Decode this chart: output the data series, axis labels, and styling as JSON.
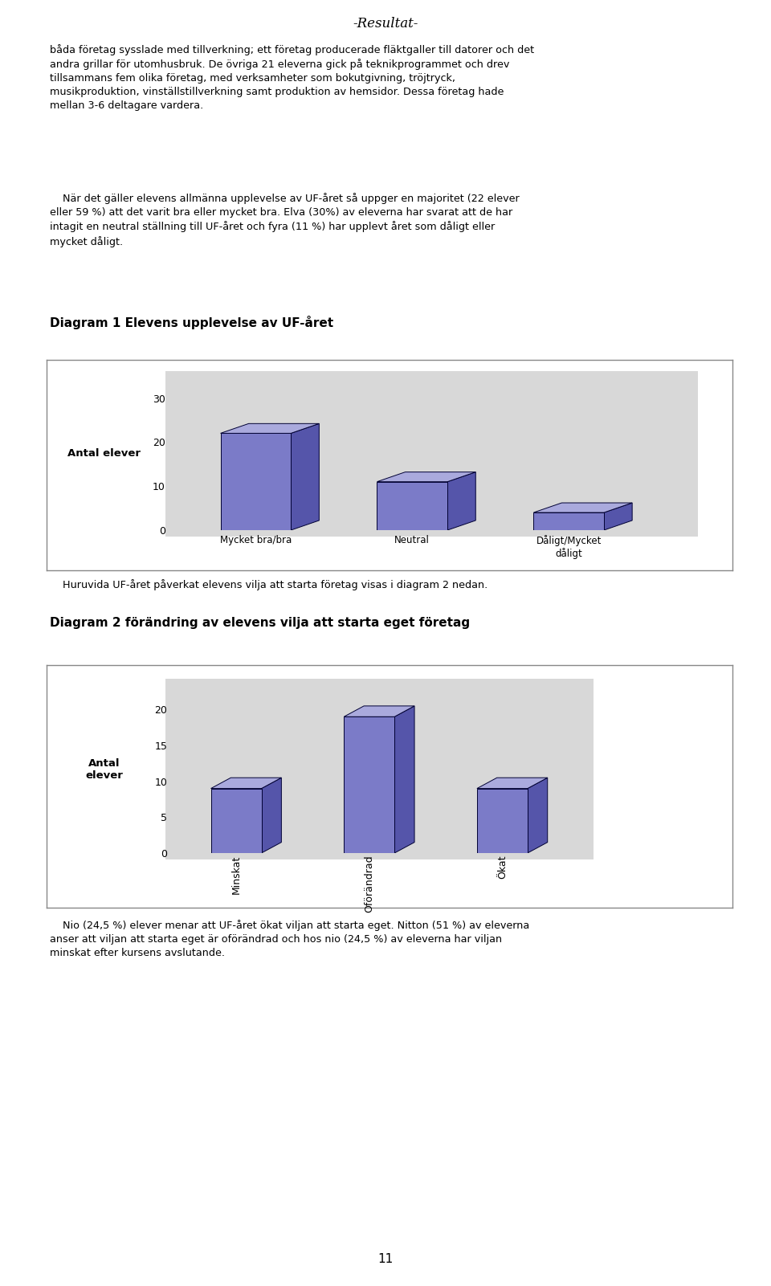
{
  "page_title": "-Resultat-",
  "body_text_1": "båda företag sysslade med tillverkning; ett företag producerade fläktgaller till datorer och det\nandra grillar för utomhusbruk. De övriga 21 eleverna gick på teknikprogrammet och drev\ntillsammans fem olika företag, med verksamheter som bokutgivning, tröjtryck,\nmusikproduktion, vinställstillverkning samt produktion av hemsidor. Dessa företag hade\nmellan 3-6 deltagare vardera.",
  "body_text_2": "    När det gäller elevens allmänna upplevelse av UF-året så uppger en majoritet (22 elever\neller 59 %) att det varit bra eller mycket bra. Elva (30%) av eleverna har svarat att de har\nintagit en neutral ställning till UF-året och fyra (11 %) har upplevt året som dåligt eller\nmycket dåligt.",
  "diagram1_title": "Diagram 1 Elevens upplevelse av UF-året",
  "diagram1_ylabel": "Antal elever",
  "diagram1_categories": [
    "Mycket bra/bra",
    "Neutral",
    "Dåligt/Mycket\ndåligt"
  ],
  "diagram1_values": [
    22,
    11,
    4
  ],
  "diagram1_ylim": [
    0,
    30
  ],
  "diagram1_yticks": [
    0,
    10,
    20,
    30
  ],
  "between_text": "    Huruvida UF-året påverkat elevens vilja att starta företag visas i diagram 2 nedan.",
  "diagram2_title": "Diagram 2 förändring av elevens vilja att starta eget företag",
  "diagram2_ylabel_line1": "Antal",
  "diagram2_ylabel_line2": "elever",
  "diagram2_categories": [
    "Minskat",
    "Oförändrad",
    "Ökat"
  ],
  "diagram2_values": [
    9,
    19,
    9
  ],
  "diagram2_ylim": [
    0,
    20
  ],
  "diagram2_yticks": [
    0,
    5,
    10,
    15,
    20
  ],
  "body_text_3": "    Nio (24,5 %) elever menar att UF-året ökat viljan att starta eget. Nitton (51 %) av eleverna\nanser att viljan att starta eget är oförändrad och hos nio (24,5 %) av eleverna har viljan\nminskat efter kursens avslutande.",
  "page_number": "11",
  "bar_face_color": "#7b7bc8",
  "bar_edge_color": "#000033",
  "bar_top_color": "#aaaadd",
  "bar_side_color": "#5555aa",
  "chart_bg_color": "#c0c0c0",
  "chart_wall_color": "#d8d8d8",
  "outer_bg_color": "#ffffff",
  "box_border_color": "#aaaaaa",
  "font_family": "DejaVu Sans"
}
